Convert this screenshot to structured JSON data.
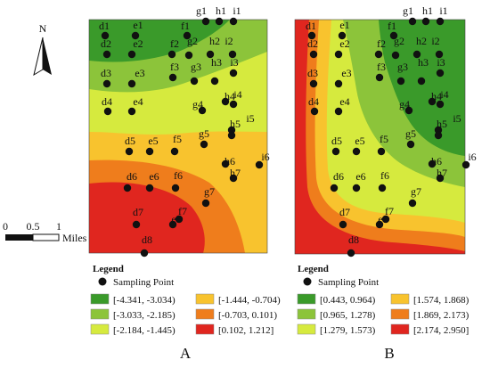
{
  "north_arrow": {
    "letter": "N"
  },
  "scale_bar": {
    "tick_labels": [
      "0",
      "0.5",
      "1"
    ],
    "unit": "Miles"
  },
  "panels": [
    {
      "id": "A",
      "label": "A",
      "legend": {
        "title": "Legend",
        "point_label": "Sampling Point",
        "classes": [
          {
            "range": "[-4.341,  -3.034)",
            "color": "#3a9a2a"
          },
          {
            "range": "[-3.033,  -2.185)",
            "color": "#8cc43a"
          },
          {
            "range": "[-2.184,  -1.445)",
            "color": "#d6ea3e"
          },
          {
            "range": "[-1.444,  -0.704)",
            "color": "#f8c32e"
          },
          {
            "range": "[-0.703,  0.101)",
            "color": "#ef7d1c"
          },
          {
            "range": "[0.102,  1.212]",
            "color": "#e0261f"
          }
        ]
      }
    },
    {
      "id": "B",
      "label": "B",
      "legend": {
        "title": "Legend",
        "point_label": "Sampling Point",
        "classes": [
          {
            "range": "[0.443,  0.964)",
            "color": "#3a9a2a"
          },
          {
            "range": "[0.965,  1.278)",
            "color": "#8cc43a"
          },
          {
            "range": "[1.279,  1.573)",
            "color": "#d6ea3e"
          },
          {
            "range": "[1.574,  1.868)",
            "color": "#f8c32e"
          },
          {
            "range": "[1.869,  2.173)",
            "color": "#ef7d1c"
          },
          {
            "range": "[2.174,  2.950]",
            "color": "#e0261f"
          }
        ]
      }
    }
  ],
  "sampling_points": [
    "d1",
    "e1",
    "f1",
    "g1",
    "h1",
    "i1",
    "d2",
    "e2",
    "f2",
    "g2",
    "h2",
    "i2",
    "d3",
    "e3",
    "f3",
    "g3",
    "h3",
    "i3",
    "d4",
    "e4",
    "g4",
    "h4",
    "i4",
    "i5",
    "h5",
    "g5",
    "d5",
    "e5",
    "f5",
    "i6",
    "h6",
    "h7",
    "d6",
    "e6",
    "f6",
    "g7",
    "d7",
    "e7",
    "f7",
    "d8"
  ]
}
